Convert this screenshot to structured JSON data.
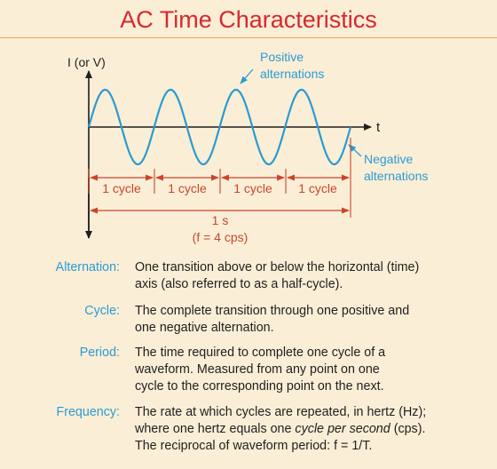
{
  "title": "AC Time Characteristics",
  "diagram": {
    "y_axis_label": "I (or V)",
    "x_axis_label": "t",
    "positive_label": [
      "Positive",
      "alternations"
    ],
    "negative_label": [
      "Negative",
      "alternations"
    ],
    "cycle_labels": [
      "1 cycle",
      "1 cycle",
      "1 cycle",
      "1 cycle"
    ],
    "period_label": "1 s",
    "frequency_label": "(f = 4 cps)",
    "colors": {
      "wave": "#2a9bd3",
      "dimension": "#c8462c",
      "axis": "#1f1f1f"
    }
  },
  "definitions": [
    {
      "term": "Alternation:",
      "lines": [
        "One transition above or below the horizontal (time)",
        "axis (also referred to as a half-cycle)."
      ]
    },
    {
      "term": "Cycle:",
      "lines": [
        "The complete transition through one positive and",
        "one negative alternation."
      ]
    },
    {
      "term": "Period:",
      "lines": [
        "The time required to complete one cycle of a",
        "waveform. Measured from any point on one",
        "cycle to the corresponding point on the next."
      ]
    },
    {
      "term": "Frequency:",
      "lines": [
        "The rate at which cycles are repeated, in hertz (Hz);"
      ],
      "line2": {
        "before": "where one hertz equals one ",
        "emph": "cycle per second",
        "after": " (cps)."
      },
      "line3": "The reciprocal of waveform period:  f = 1/T."
    }
  ]
}
